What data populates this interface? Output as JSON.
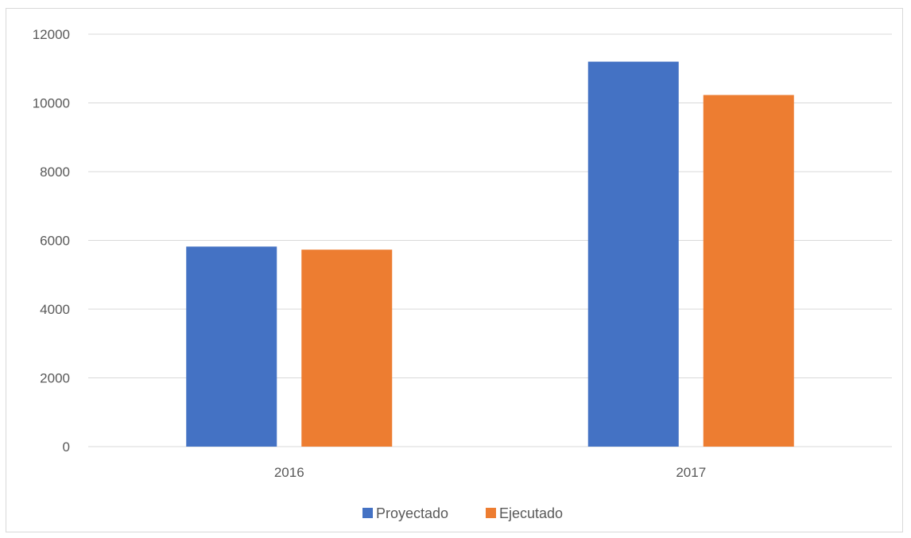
{
  "chart_data": {
    "type": "bar",
    "categories": [
      "2016",
      "2017"
    ],
    "series": [
      {
        "name": "Proyectado",
        "values": [
          5820,
          11200
        ],
        "color": "#4472C4"
      },
      {
        "name": "Ejecutado",
        "values": [
          5730,
          10230
        ],
        "color": "#ED7D31"
      }
    ],
    "title": "",
    "xlabel": "",
    "ylabel": "",
    "ylim": [
      0,
      12000
    ],
    "yticks": [
      "0",
      "2000",
      "4000",
      "6000",
      "8000",
      "10000",
      "12000"
    ],
    "grid": true,
    "legend_position": "bottom"
  }
}
